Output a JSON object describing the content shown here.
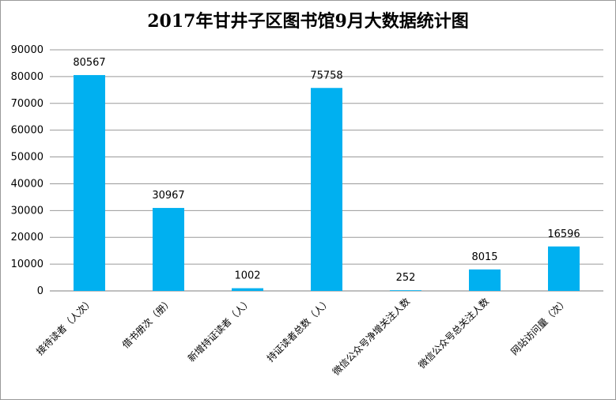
{
  "chart_data": {
    "type": "bar",
    "title": "2017年甘井子区图书馆9月大数据统计图",
    "categories": [
      "接待读者（人次）",
      "借书册次（册）",
      "新增持证读者（人）",
      "持证读者总数（人）",
      "微信公众号净增关注人数",
      "微信公众号总关注人数",
      "网站访问量（次）"
    ],
    "values": [
      80567,
      30967,
      1002,
      75758,
      252,
      8015,
      16596
    ],
    "yticks": [
      "0",
      "10000",
      "20000",
      "30000",
      "40000",
      "50000",
      "60000",
      "70000",
      "80000",
      "90000"
    ],
    "ylim": [
      0,
      90000
    ],
    "grid": true,
    "legend": "none",
    "bar_color": "#00b0f0",
    "xlabel": "",
    "ylabel": ""
  }
}
